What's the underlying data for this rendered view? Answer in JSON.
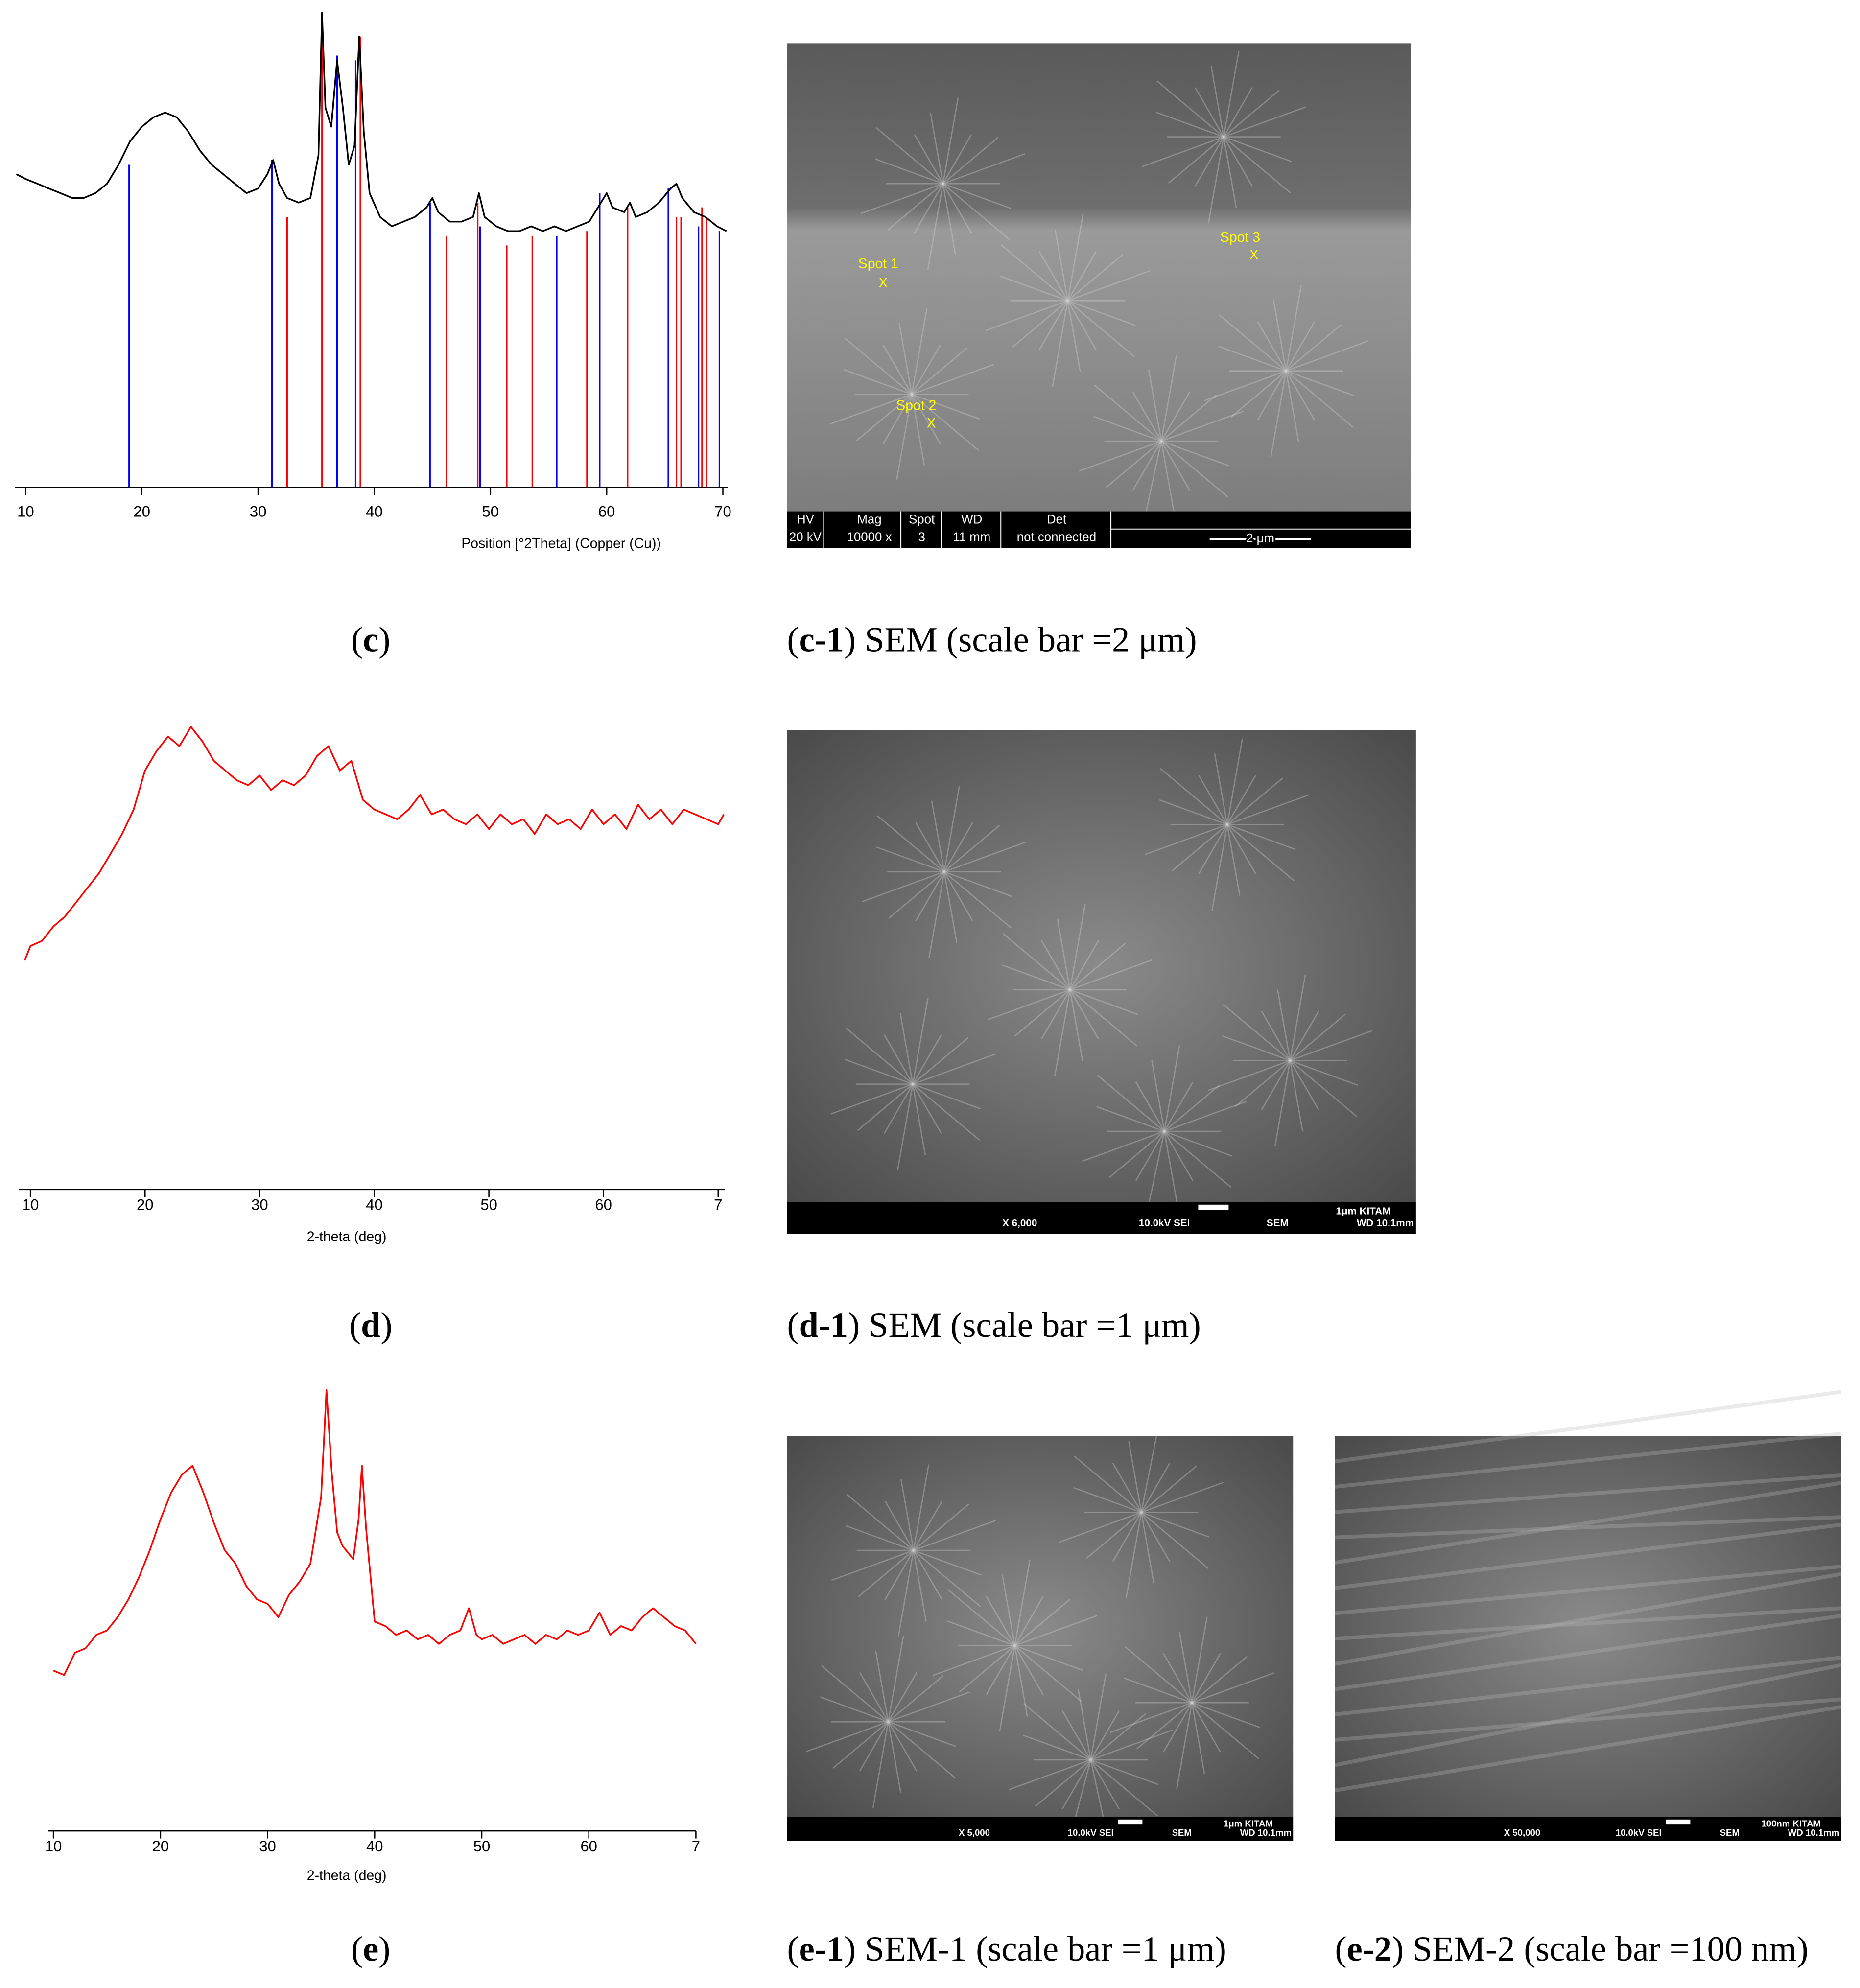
{
  "chart_data": [
    {
      "type": "line",
      "x_label": "Position [°2Theta] (Copper (Cu))",
      "xlim": [
        9.1,
        70.4
      ],
      "ylim": [
        0,
        100
      ],
      "xticks": [
        10,
        20,
        30,
        40,
        50,
        60,
        70
      ],
      "x": [
        9.2,
        10,
        11,
        12,
        13,
        14,
        15,
        16,
        17,
        18,
        19,
        20,
        21,
        22,
        23,
        24,
        25,
        26,
        27,
        28,
        29,
        30,
        30.8,
        31.3,
        31.8,
        32.5,
        33.5,
        34.5,
        35.2,
        35.5,
        35.8,
        36.3,
        36.8,
        37.3,
        37.8,
        38.3,
        38.7,
        39.1,
        39.6,
        40.5,
        41.5,
        42.5,
        43.5,
        44.5,
        45,
        45.5,
        46.5,
        47.5,
        48.5,
        49,
        49.5,
        50.5,
        51.5,
        52.5,
        53.5,
        54.5,
        55.5,
        56.5,
        57.5,
        58.5,
        59.5,
        60,
        60.5,
        61.5,
        62,
        62.5,
        63.5,
        64.5,
        65.5,
        66,
        66.5,
        67.5,
        68.5,
        69.5,
        70.3
      ],
      "series": [
        {
          "color": "#000000",
          "values": [
            66,
            65,
            64,
            63,
            62,
            61,
            61,
            62,
            64,
            68,
            73,
            76,
            78,
            79,
            78,
            75,
            71,
            68,
            66,
            64,
            62,
            63,
            66,
            69,
            64,
            61,
            60,
            61,
            70,
            100,
            80,
            76,
            90,
            80,
            68,
            72,
            95,
            75,
            62,
            57,
            55,
            56,
            57,
            59,
            61,
            58,
            56,
            56,
            57,
            62,
            57,
            55,
            54,
            54,
            55,
            54,
            55,
            54,
            55,
            56,
            60,
            62,
            59,
            58,
            60,
            57,
            58,
            60,
            63,
            64,
            61,
            58,
            57,
            55,
            54
          ]
        }
      ],
      "sticks": [
        {
          "color": "#0000ff",
          "x": [
            18.9,
            31.2,
            36.8,
            38.4,
            44.8,
            49.1,
            55.7,
            59.4,
            65.3,
            67.9,
            69.7
          ],
          "values": [
            68,
            69,
            91,
            90,
            60,
            55,
            53,
            62,
            63,
            55,
            54
          ]
        },
        {
          "color": "#ff0000",
          "x": [
            32.5,
            35.5,
            38.8,
            46.2,
            48.9,
            51.4,
            53.6,
            58.3,
            61.8,
            66.0,
            66.4,
            68.2,
            68.6
          ],
          "values": [
            57,
            100,
            95,
            53,
            60,
            51,
            53,
            54,
            59,
            57,
            57,
            59,
            57
          ]
        }
      ]
    },
    {
      "type": "line",
      "x_label": "2-theta (deg)",
      "xlim": [
        9.0,
        70.6
      ],
      "ylim": [
        0,
        100
      ],
      "xticks": [
        10,
        20,
        30,
        40,
        50,
        60,
        {
          "value": 70,
          "label": "7"
        }
      ],
      "x": [
        9.5,
        10,
        11,
        12,
        13,
        14,
        15,
        16,
        17,
        18,
        19,
        20,
        21,
        22,
        23,
        24,
        25,
        26,
        27,
        28,
        29,
        30,
        31,
        32,
        33,
        34,
        35,
        36,
        37,
        38,
        39,
        40,
        41,
        42,
        43,
        44,
        45,
        46,
        47,
        48,
        49,
        50,
        51,
        52,
        53,
        54,
        55,
        56,
        57,
        58,
        59,
        60,
        61,
        62,
        63,
        64,
        65,
        66,
        67,
        68,
        69,
        70,
        70.5
      ],
      "series": [
        {
          "color": "#ff0000",
          "values": [
            47,
            50,
            51,
            54,
            56,
            59,
            62,
            65,
            69,
            73,
            78,
            86,
            90,
            93,
            91,
            95,
            92,
            88,
            86,
            84,
            83,
            85,
            82,
            84,
            83,
            85,
            89,
            91,
            86,
            88,
            80,
            78,
            77,
            76,
            78,
            81,
            77,
            78,
            76,
            75,
            77,
            74,
            77,
            75,
            76,
            73,
            77,
            75,
            76,
            74,
            78,
            75,
            77,
            74,
            79,
            76,
            78,
            75,
            78,
            77,
            76,
            75,
            77
          ]
        }
      ]
    },
    {
      "type": "line",
      "x_label": "2-theta (deg)",
      "xlim": [
        9.5,
        70
      ],
      "ylim": [
        0,
        100
      ],
      "xticks": [
        10,
        20,
        30,
        40,
        50,
        60,
        {
          "value": 70,
          "label": "7"
        }
      ],
      "x": [
        10,
        11,
        12,
        13,
        14,
        15,
        16,
        17,
        18,
        19,
        20,
        21,
        22,
        23,
        24,
        25,
        26,
        27,
        28,
        29,
        30,
        31,
        32,
        33,
        34,
        35,
        35.5,
        36,
        36.5,
        37,
        38,
        38.5,
        38.8,
        39.2,
        40,
        41,
        42,
        43,
        44,
        45,
        46,
        47,
        48,
        48.8,
        49.5,
        50,
        51,
        52,
        53,
        54,
        55,
        56,
        57,
        58,
        59,
        60,
        61,
        62,
        63,
        64,
        65,
        66,
        67,
        68,
        69,
        70
      ],
      "series": [
        {
          "color": "#ff0000",
          "values": [
            36,
            35,
            40,
            41,
            44,
            45,
            48,
            52,
            57,
            63,
            70,
            76,
            80,
            82,
            76,
            69,
            63,
            60,
            55,
            52,
            51,
            48,
            53,
            56,
            60,
            75,
            99,
            80,
            67,
            64,
            61,
            70,
            82,
            68,
            47,
            46,
            44,
            45,
            43,
            44,
            42,
            44,
            45,
            50,
            44,
            43,
            44,
            42,
            43,
            44,
            42,
            44,
            43,
            45,
            44,
            45,
            49,
            44,
            46,
            45,
            48,
            50,
            48,
            46,
            45,
            42
          ]
        }
      ]
    }
  ],
  "images": [
    {
      "spots": [
        {
          "label": "Spot 1",
          "mark": "X"
        },
        {
          "label": "Spot 2",
          "mark": "X"
        },
        {
          "label": "Spot 3",
          "mark": "X"
        }
      ],
      "info_bar": [
        [
          "HV",
          "20 kV"
        ],
        [
          "Mag",
          "10000 x"
        ],
        [
          "Spot",
          "3"
        ],
        [
          "WD",
          "11 mm"
        ],
        [
          "Det",
          "not connected"
        ]
      ],
      "scale": "2 μm"
    },
    {
      "info_bar_texts": [
        "1μm  KITAM",
        "X 6,000",
        "10.0kV SEI",
        "SEM",
        "WD 10.1mm"
      ]
    },
    {
      "info_bar_texts": [
        "1μm  KITAM",
        "X 5,000",
        "10.0kV SEI",
        "SEM",
        "WD 10.1mm"
      ]
    },
    {
      "info_bar_texts": [
        "100nm KITAM",
        "X 50,000",
        "10.0kV SEI",
        "SEM",
        "WD 10.1mm"
      ]
    }
  ],
  "captions": [
    [
      "(",
      "c",
      ")"
    ],
    [
      "(",
      "c-1",
      ") SEM (scale bar =2 μm)"
    ],
    [
      "(",
      "d",
      ")"
    ],
    [
      "(",
      "d-1",
      ") SEM (scale bar =1 μm)"
    ],
    [
      "(",
      "e",
      ")"
    ],
    [
      "(",
      "e-1",
      ") SEM-1 (scale bar =1 μm)"
    ],
    [
      "(",
      "e-2",
      ") SEM-2 (scale bar =100 nm)"
    ]
  ]
}
